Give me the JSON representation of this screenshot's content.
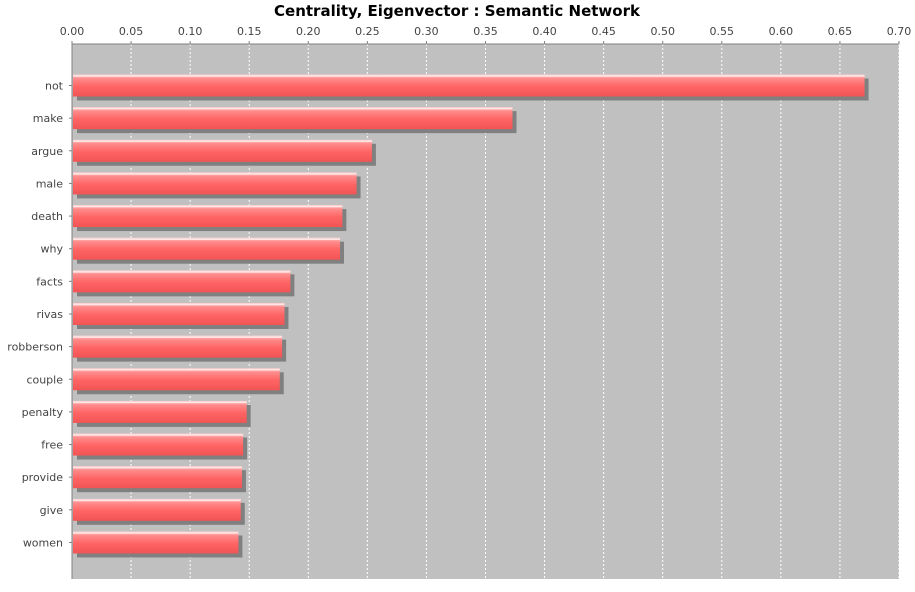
{
  "chart_data": {
    "type": "bar",
    "orientation": "horizontal",
    "title": "Centrality, Eigenvector : Semantic Network",
    "xlabel": "",
    "ylabel": "",
    "xlim": [
      0.0,
      0.7
    ],
    "ticks": [
      "0.00",
      "0.05",
      "0.10",
      "0.15",
      "0.20",
      "0.25",
      "0.30",
      "0.35",
      "0.40",
      "0.45",
      "0.50",
      "0.55",
      "0.60",
      "0.65",
      "0.70"
    ],
    "grid": true,
    "categories": [
      "not",
      "make",
      "argue",
      "male",
      "death",
      "why",
      "facts",
      "rivas",
      "robberson",
      "couple",
      "penalty",
      "free",
      "provide",
      "give",
      "women"
    ],
    "values": [
      0.67,
      0.372,
      0.253,
      0.24,
      0.228,
      0.226,
      0.184,
      0.179,
      0.177,
      0.175,
      0.147,
      0.144,
      0.143,
      0.142,
      0.14
    ],
    "colors": {
      "bar": "#ff6a6a",
      "bar_highlight": "#ffd0d0",
      "shadow": "#808080",
      "plot_bg": "#c0c0c0",
      "grid": "#ffffff"
    }
  }
}
